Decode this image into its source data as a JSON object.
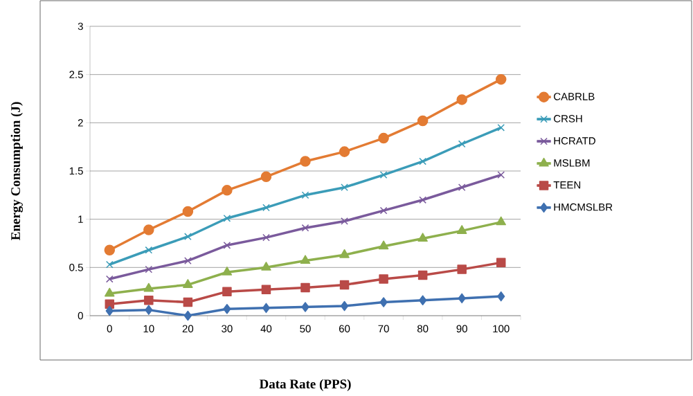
{
  "chart_data": {
    "type": "line",
    "xlabel": "Data Rate (PPS)",
    "ylabel": "Energy Consumption (J)",
    "categories": [
      "0",
      "10",
      "20",
      "30",
      "40",
      "50",
      "60",
      "70",
      "80",
      "90",
      "100"
    ],
    "ylim": [
      0,
      3
    ],
    "yticks": [
      0,
      0.5,
      1,
      1.5,
      2,
      2.5,
      3
    ],
    "grid": "y",
    "legend": "right",
    "line_style": "solid",
    "series": [
      {
        "name": "CABRLB",
        "color": "#e37b33",
        "marker": "circle",
        "values": [
          0.68,
          0.89,
          1.08,
          1.3,
          1.44,
          1.6,
          1.7,
          1.84,
          2.02,
          2.24,
          2.45
        ]
      },
      {
        "name": "CRSH",
        "color": "#3b9cb8",
        "marker": "cross",
        "values": [
          0.53,
          0.68,
          0.82,
          1.01,
          1.12,
          1.25,
          1.33,
          1.46,
          1.6,
          1.78,
          1.95
        ]
      },
      {
        "name": "HCRATD",
        "color": "#7a5a9c",
        "marker": "cross",
        "values": [
          0.38,
          0.48,
          0.57,
          0.73,
          0.81,
          0.91,
          0.98,
          1.09,
          1.2,
          1.33,
          1.46
        ]
      },
      {
        "name": "MSLBM",
        "color": "#8eb04d",
        "marker": "triangle",
        "values": [
          0.23,
          0.28,
          0.32,
          0.45,
          0.5,
          0.57,
          0.63,
          0.72,
          0.8,
          0.88,
          0.97
        ]
      },
      {
        "name": "TEEN",
        "color": "#b94a47",
        "marker": "square",
        "values": [
          0.12,
          0.16,
          0.14,
          0.25,
          0.27,
          0.29,
          0.32,
          0.38,
          0.42,
          0.48,
          0.55
        ]
      },
      {
        "name": "HMCMSLBR",
        "color": "#3f70b0",
        "marker": "diamond",
        "values": [
          0.05,
          0.06,
          0.0,
          0.07,
          0.08,
          0.09,
          0.1,
          0.14,
          0.16,
          0.18,
          0.2
        ]
      }
    ]
  }
}
